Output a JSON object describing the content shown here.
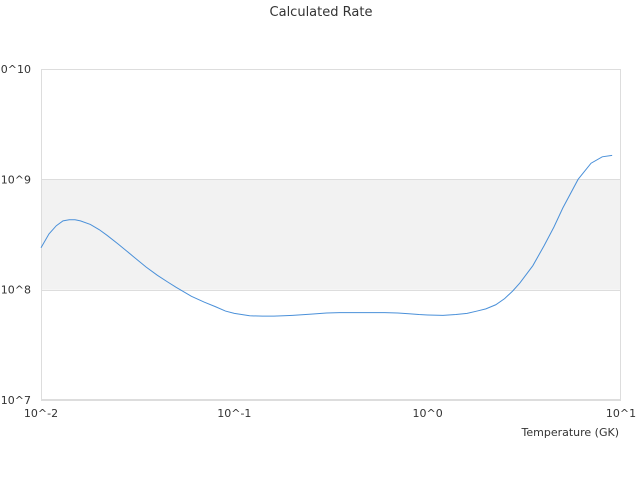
{
  "chart_data": {
    "type": "line",
    "title": "Calculated Rate",
    "xlabel": "Temperature (GK)",
    "ylabel": "",
    "x_scale": "log",
    "y_scale": "log",
    "xlim": [
      0.01,
      10
    ],
    "ylim": [
      10000000,
      10000000000
    ],
    "x_ticks": [
      {
        "value": 0.01,
        "label": "10^-2"
      },
      {
        "value": 0.1,
        "label": "10^-1"
      },
      {
        "value": 1,
        "label": "10^0"
      },
      {
        "value": 10,
        "label": "10^1"
      }
    ],
    "y_ticks": [
      {
        "value": 10000000,
        "label": "10^7"
      },
      {
        "value": 100000000,
        "label": "10^8"
      },
      {
        "value": 1000000000,
        "label": "10^9"
      },
      {
        "value": 10000000000,
        "label": "10^10"
      }
    ],
    "band": {
      "y_from": 100000000,
      "y_to": 1000000000,
      "color": "#f2f2f2"
    },
    "grid": true,
    "legend": "none",
    "colors": {
      "line": "#4a90d9",
      "grid": "#dddddd",
      "plot_border": "#dddddd"
    },
    "series": [
      {
        "name": "",
        "x": [
          0.01,
          0.011,
          0.012,
          0.013,
          0.014,
          0.015,
          0.016,
          0.018,
          0.02,
          0.022,
          0.025,
          0.03,
          0.035,
          0.04,
          0.045,
          0.05,
          0.06,
          0.07,
          0.08,
          0.09,
          0.1,
          0.12,
          0.14,
          0.16,
          0.18,
          0.2,
          0.25,
          0.3,
          0.35,
          0.4,
          0.5,
          0.6,
          0.7,
          0.8,
          0.9,
          1.0,
          1.2,
          1.4,
          1.6,
          1.8,
          2.0,
          2.25,
          2.5,
          2.75,
          3.0,
          3.5,
          4.0,
          4.5,
          5.0,
          6.0,
          7.0,
          8.0,
          9.0
        ],
        "y": [
          240000000,
          320000000,
          380000000,
          420000000,
          430000000,
          430000000,
          420000000,
          390000000,
          350000000,
          310000000,
          260000000,
          200000000,
          160000000,
          135000000,
          118000000,
          105000000,
          87000000,
          77000000,
          70000000,
          64000000,
          61000000,
          58000000,
          57500000,
          57500000,
          58000000,
          58500000,
          60000000,
          61500000,
          62000000,
          62000000,
          62000000,
          62000000,
          61500000,
          60500000,
          59500000,
          59000000,
          58500000,
          59500000,
          61000000,
          64000000,
          67000000,
          73000000,
          83000000,
          97000000,
          115000000,
          165000000,
          250000000,
          370000000,
          550000000,
          1000000000,
          1400000000,
          1600000000,
          1650000000
        ]
      }
    ]
  }
}
